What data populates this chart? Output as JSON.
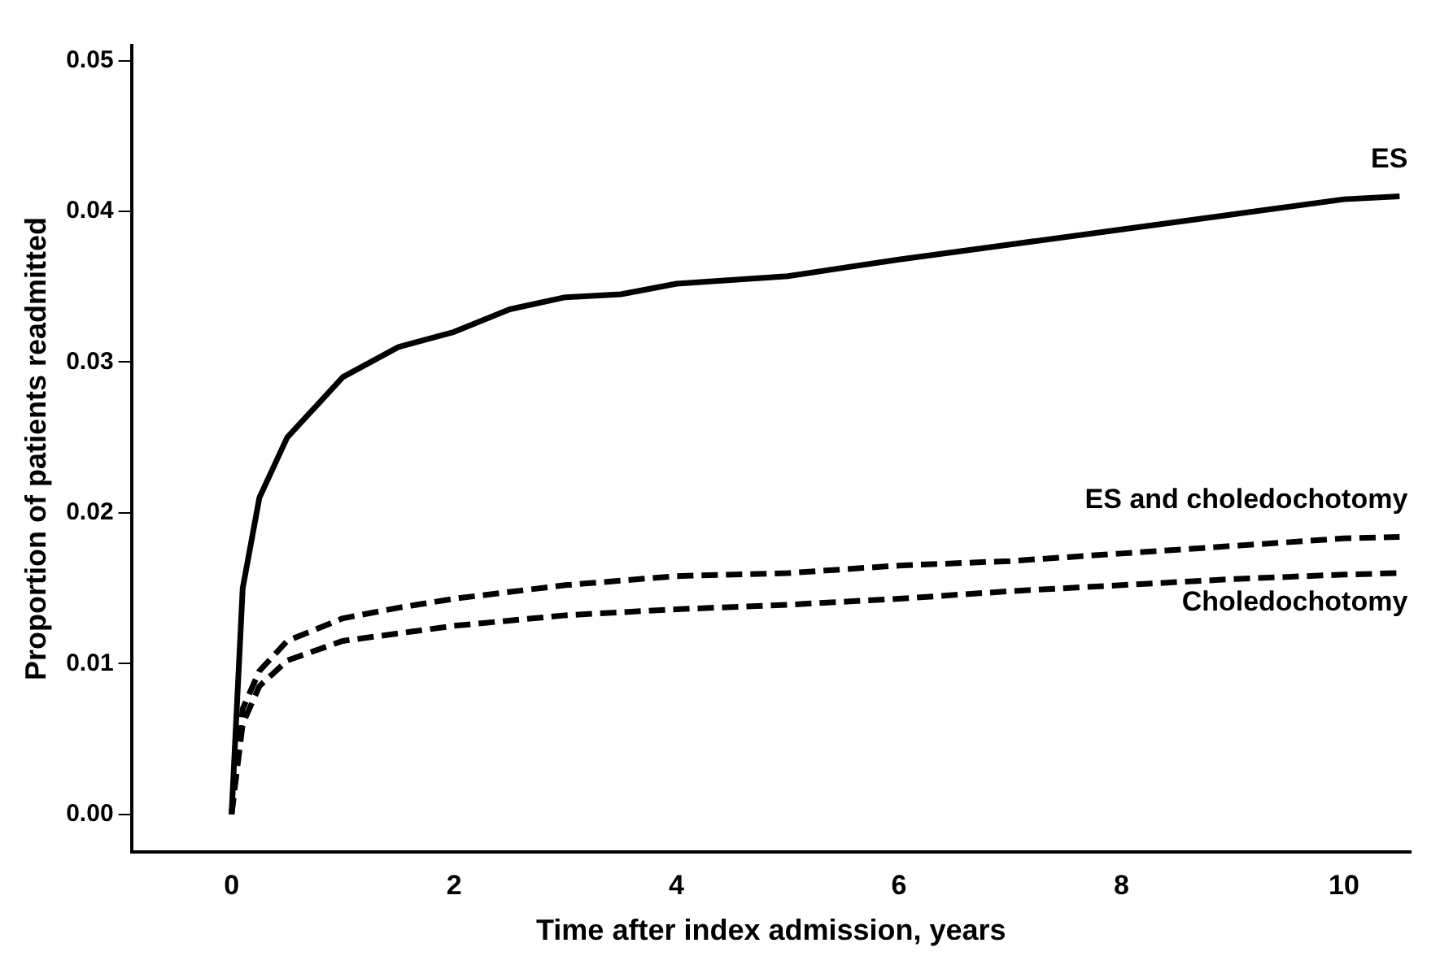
{
  "chart_data": {
    "type": "line",
    "xlabel": "Time after index admission, years",
    "ylabel": "Proportion of patients readmitted",
    "xlim": [
      -0.9,
      10.6
    ],
    "xticks": [
      0,
      2,
      4,
      6,
      8,
      10
    ],
    "ylim": [
      -0.0025,
      0.051
    ],
    "yticks": [
      {
        "value": 0,
        "label": "0.00"
      },
      {
        "value": 0.01,
        "label": "0.01"
      },
      {
        "value": 0.02,
        "label": "0.02"
      },
      {
        "value": 0.03,
        "label": "0.03"
      },
      {
        "value": 0.04,
        "label": "0.04"
      },
      {
        "value": 0.05,
        "label": "0.05"
      }
    ],
    "grid": false,
    "legend": false,
    "marker": "none",
    "series": [
      {
        "name": "ES",
        "color": "#000000",
        "line_style": "solid",
        "x": [
          0,
          0.1,
          0.25,
          0.5,
          0.75,
          1,
          1.5,
          2,
          2.5,
          3,
          3.5,
          4,
          5,
          6,
          7,
          8,
          9,
          10,
          10.5
        ],
        "values": [
          0,
          0.015,
          0.021,
          0.025,
          0.027,
          0.029,
          0.031,
          0.032,
          0.0335,
          0.0343,
          0.0345,
          0.0352,
          0.0357,
          0.0368,
          0.0378,
          0.0388,
          0.0398,
          0.0408,
          0.041
        ]
      },
      {
        "name": "ES and choledochotomy",
        "color": "#000000",
        "line_style": "dashed",
        "x": [
          0,
          0.1,
          0.25,
          0.5,
          1,
          1.5,
          2,
          3,
          4,
          5,
          6,
          7,
          8,
          9,
          10,
          10.5
        ],
        "values": [
          0,
          0.007,
          0.0095,
          0.0115,
          0.013,
          0.0137,
          0.0143,
          0.0152,
          0.0158,
          0.016,
          0.0165,
          0.0168,
          0.0173,
          0.0178,
          0.0183,
          0.0184
        ]
      },
      {
        "name": "Choledochotomy",
        "color": "#000000",
        "line_style": "dashed",
        "x": [
          0,
          0.1,
          0.25,
          0.5,
          1,
          2,
          3,
          4,
          5,
          6,
          7,
          8,
          9,
          10,
          10.5
        ],
        "values": [
          0,
          0.006,
          0.0085,
          0.0102,
          0.0115,
          0.0125,
          0.0132,
          0.0136,
          0.0139,
          0.0143,
          0.0148,
          0.0152,
          0.0156,
          0.0159,
          0.016
        ]
      }
    ]
  }
}
